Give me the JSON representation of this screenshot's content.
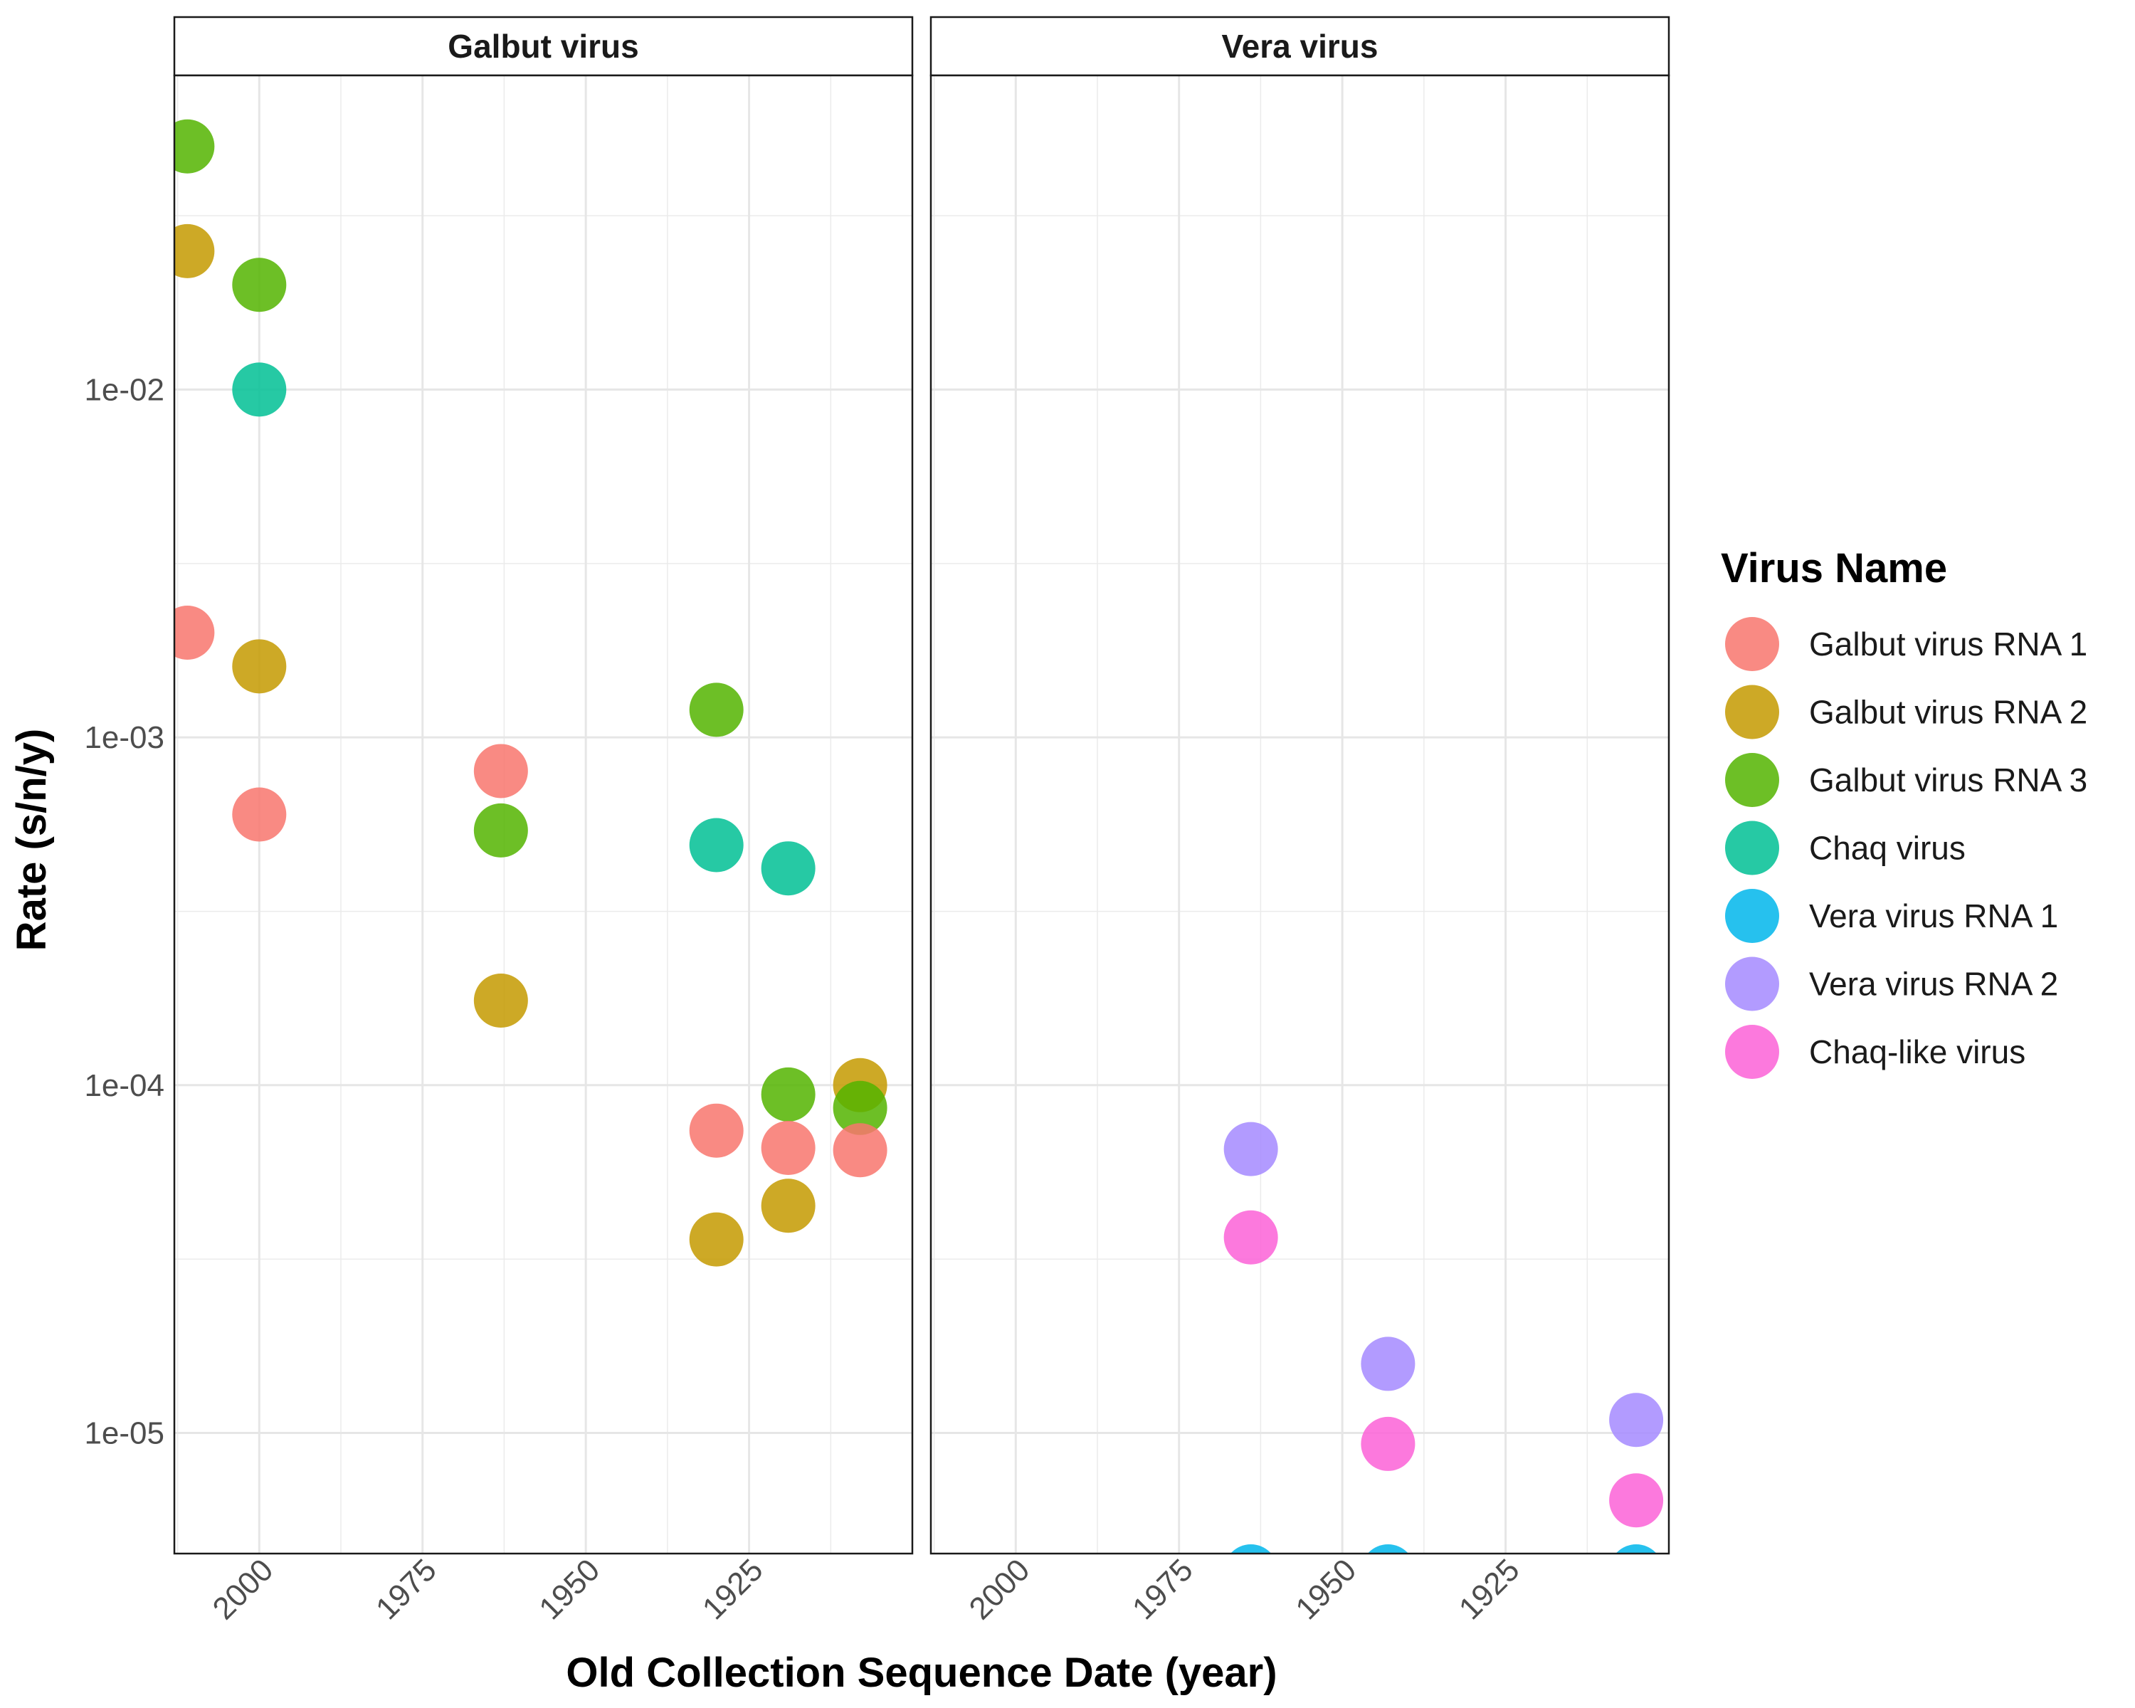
{
  "chart_data": {
    "type": "scatter",
    "xlabel": "Old Collection Sequence Date (year)",
    "ylabel": "Rate (s/n/y)",
    "x_reversed": true,
    "y_scale": "log10",
    "ylim": [
      4.5e-06,
      0.08
    ],
    "y_ticks": [
      "1e-02",
      "1e-03",
      "1e-04",
      "1e-05"
    ],
    "y_tick_values": [
      0.01,
      0.001,
      0.0001,
      1e-05
    ],
    "x_ticks": [
      "2000",
      "1975",
      "1950",
      "1925"
    ],
    "x_tick_values": [
      2000,
      1975,
      1950,
      1925
    ],
    "grid": true,
    "legend": {
      "title": "Virus Name",
      "placement": "right",
      "entries": [
        {
          "name": "Galbut virus RNA 1",
          "color": "#F8766D"
        },
        {
          "name": "Galbut virus RNA 2",
          "color": "#C49A00"
        },
        {
          "name": "Galbut virus RNA 3",
          "color": "#53B400"
        },
        {
          "name": "Chaq virus",
          "color": "#00C094"
        },
        {
          "name": "Vera virus RNA 1",
          "color": "#00B6EB"
        },
        {
          "name": "Vera virus RNA 2",
          "color": "#A58AFF"
        },
        {
          "name": "Chaq-like virus",
          "color": "#FB61D7"
        }
      ]
    },
    "panels": [
      {
        "title": "Galbut virus",
        "xlim": [
          2013,
          1900
        ],
        "points": [
          {
            "series": "Galbut virus RNA 3",
            "x": 2011,
            "y": 0.05
          },
          {
            "series": "Galbut virus RNA 2",
            "x": 2011,
            "y": 0.025
          },
          {
            "series": "Galbut virus RNA 3",
            "x": 2000,
            "y": 0.02
          },
          {
            "series": "Chaq virus",
            "x": 2000,
            "y": 0.01
          },
          {
            "series": "Galbut virus RNA 1",
            "x": 2011,
            "y": 0.002
          },
          {
            "series": "Galbut virus RNA 2",
            "x": 2000,
            "y": 0.0016
          },
          {
            "series": "Galbut virus RNA 1",
            "x": 2000,
            "y": 0.0006
          },
          {
            "series": "Galbut virus RNA 1",
            "x": 1963,
            "y": 0.0008
          },
          {
            "series": "Galbut virus RNA 3",
            "x": 1963,
            "y": 0.00054
          },
          {
            "series": "Galbut virus RNA 2",
            "x": 1963,
            "y": 0.000175
          },
          {
            "series": "Galbut virus RNA 3",
            "x": 1930,
            "y": 0.0012
          },
          {
            "series": "Chaq virus",
            "x": 1930,
            "y": 0.00049
          },
          {
            "series": "Galbut virus RNA 1",
            "x": 1930,
            "y": 7.4e-05
          },
          {
            "series": "Galbut virus RNA 2",
            "x": 1930,
            "y": 3.6e-05
          },
          {
            "series": "Chaq virus",
            "x": 1919,
            "y": 0.00042
          },
          {
            "series": "Galbut virus RNA 3",
            "x": 1919,
            "y": 9.4e-05
          },
          {
            "series": "Galbut virus RNA 1",
            "x": 1919,
            "y": 6.6e-05
          },
          {
            "series": "Galbut virus RNA 2",
            "x": 1919,
            "y": 4.5e-05
          },
          {
            "series": "Galbut virus RNA 2",
            "x": 1908,
            "y": 0.0001
          },
          {
            "series": "Galbut virus RNA 3",
            "x": 1908,
            "y": 8.6e-05
          },
          {
            "series": "Galbut virus RNA 1",
            "x": 1908,
            "y": 6.5e-05
          }
        ]
      },
      {
        "title": "Vera virus",
        "xlim": [
          2013,
          1900
        ],
        "points": [
          {
            "series": "Vera virus RNA 2",
            "x": 1964,
            "y": 6.55e-05
          },
          {
            "series": "Chaq-like virus",
            "x": 1964,
            "y": 3.65e-05
          },
          {
            "series": "Vera virus RNA 1",
            "x": 1964,
            "y": 4e-06
          },
          {
            "series": "Vera virus RNA 2",
            "x": 1943,
            "y": 1.58e-05
          },
          {
            "series": "Chaq-like virus",
            "x": 1943,
            "y": 9.3e-06
          },
          {
            "series": "Vera virus RNA 1",
            "x": 1943,
            "y": 4e-06
          },
          {
            "series": "Vera virus RNA 2",
            "x": 1905,
            "y": 1.09e-05
          },
          {
            "series": "Chaq-like virus",
            "x": 1905,
            "y": 6.4e-06
          },
          {
            "series": "Vera virus RNA 1",
            "x": 1905,
            "y": 4e-06
          }
        ]
      }
    ]
  }
}
